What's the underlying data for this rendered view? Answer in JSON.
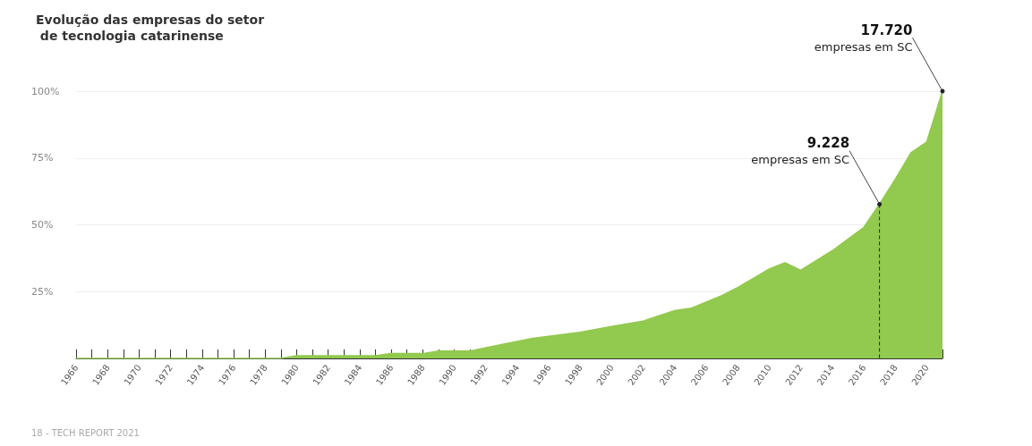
{
  "chart_data": {
    "type": "area",
    "title": "Evolução das empresas do setor de tecnologia catarinense",
    "x": [
      1966,
      1979,
      1980,
      1985,
      1986,
      1988,
      1989,
      1991,
      1993,
      1995,
      1998,
      2000,
      2002,
      2004,
      2005,
      2007,
      2008,
      2009,
      2010,
      2011,
      2012,
      2014,
      2016,
      2017,
      2018,
      2019,
      2020,
      2021
    ],
    "series": [
      {
        "color": "#92c94f",
        "values": [
          0,
          0,
          1.0,
          1.0,
          1.8,
          1.8,
          2.8,
          2.8,
          5.2,
          7.5,
          9.8,
          12,
          14,
          17.9,
          18.7,
          23.5,
          26.5,
          30,
          33.5,
          35.8,
          33,
          40.3,
          49,
          57.7,
          67,
          77,
          81,
          100
        ]
      }
    ],
    "xlim": [
      1966,
      2021
    ],
    "xticks": [
      1966,
      {
        "value": 1967,
        "label": null
      },
      1968,
      {
        "value": 1969,
        "label": null
      },
      1970,
      {
        "value": 1971,
        "label": null
      },
      1972,
      {
        "value": 1973,
        "label": null
      },
      1974,
      {
        "value": 1975,
        "label": null
      },
      1976,
      {
        "value": 1977,
        "label": null
      },
      1978,
      {
        "value": 1979,
        "label": null
      },
      1980,
      {
        "value": 1981,
        "label": null
      },
      1982,
      {
        "value": 1983,
        "label": null
      },
      1984,
      {
        "value": 1985,
        "label": null
      },
      1986,
      {
        "value": 1987,
        "label": null
      },
      1988,
      {
        "value": 1989,
        "label": null
      },
      1990,
      {
        "value": 1991,
        "label": null
      },
      1992,
      {
        "value": 1993,
        "label": null
      },
      1994,
      {
        "value": 1995,
        "label": null
      },
      1996,
      {
        "value": 1997,
        "label": null
      },
      1998,
      {
        "value": 1999,
        "label": null
      },
      2000,
      {
        "value": 2001,
        "label": null
      },
      2002,
      {
        "value": 2003,
        "label": null
      },
      2004,
      {
        "value": 2005,
        "label": null
      },
      2006,
      {
        "value": 2007,
        "label": null
      },
      2008,
      {
        "value": 2009,
        "label": null
      },
      2010,
      {
        "value": 2011,
        "label": null
      },
      2012,
      {
        "value": 2013,
        "label": null
      },
      2014,
      {
        "value": 2015,
        "label": null
      },
      2016,
      {
        "value": 2017,
        "label": null
      },
      2018,
      {
        "value": 2019,
        "label": null
      },
      2020,
      {
        "value": 2021,
        "label": null
      }
    ],
    "ylim": [
      0,
      100
    ],
    "yticks": [
      {
        "value": 25,
        "label": "25%"
      },
      {
        "value": 50,
        "label": "50%"
      },
      {
        "value": 75,
        "label": "75%"
      },
      {
        "value": 100,
        "label": "100%"
      }
    ],
    "grid": "y",
    "marker": "none",
    "annotations": [
      {
        "text": "17.720 empresas em SC",
        "x": 2021,
        "y": 100
      },
      {
        "text": "9.228 empresas em SC",
        "x": 2017,
        "y": 57.7
      },
      "18 - TECH REPORT 2021"
    ]
  }
}
